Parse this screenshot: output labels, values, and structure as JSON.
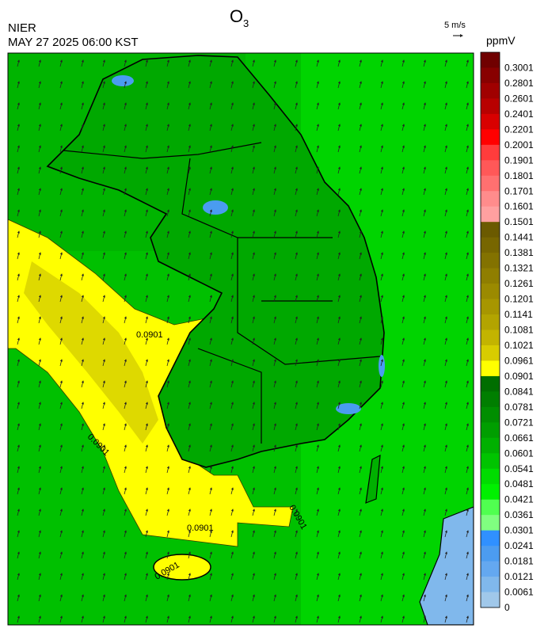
{
  "header": {
    "title": {
      "text": "O",
      "subscript": "3"
    },
    "agency": "NIER",
    "timestamp": "MAY 27 2025 06:00 KST",
    "wind_scale": "5 m/s"
  },
  "colorbar": {
    "unit": "ppmV",
    "labels": [
      0.3001,
      0.2801,
      0.2601,
      0.2401,
      0.2201,
      0.2001,
      0.1901,
      0.1801,
      0.1701,
      0.1601,
      0.1501,
      0.1441,
      0.1381,
      0.1321,
      0.1261,
      0.1201,
      0.1141,
      0.1081,
      0.1021,
      0.0961,
      0.0901,
      0.0841,
      0.0781,
      0.0721,
      0.0661,
      0.0601,
      0.0541,
      0.0481,
      0.0421,
      0.0361,
      0.0301,
      0.0241,
      0.0181,
      0.0121,
      0.0061,
      0
    ],
    "colors": [
      "#700000",
      "#880000",
      "#a00000",
      "#b80000",
      "#d80000",
      "#ff0000",
      "#ff3c3c",
      "#ff5858",
      "#ff7070",
      "#ff8c8c",
      "#ffa0a0",
      "#6b5a00",
      "#776600",
      "#837200",
      "#8f7e00",
      "#9b8a00",
      "#a79600",
      "#b3a400",
      "#c3b400",
      "#d8cc00",
      "#ffff00",
      "#006e00",
      "#007e00",
      "#008e00",
      "#009e00",
      "#00b000",
      "#00c400",
      "#00dc00",
      "#00f000",
      "#50ff50",
      "#80ff80",
      "#3090ff",
      "#4c9cf0",
      "#64a8f0",
      "#80b8ec",
      "#a0c8ea"
    ]
  },
  "contour_labels": [
    "0.0901",
    "0.0901",
    "0.0901",
    "0.0901",
    "0.0901"
  ]
}
